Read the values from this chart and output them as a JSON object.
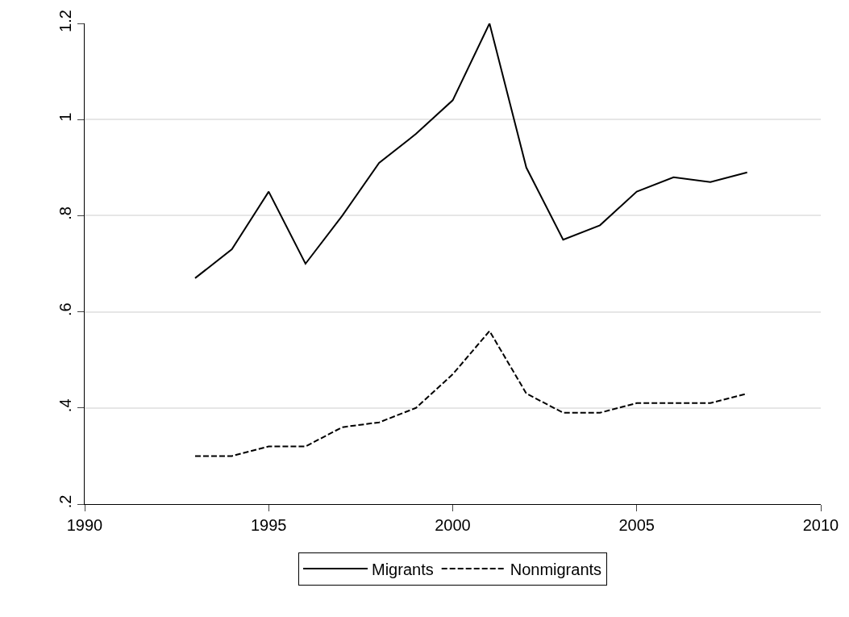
{
  "chart_data": {
    "type": "line",
    "x": [
      1993,
      1994,
      1995,
      1996,
      1997,
      1998,
      1999,
      2000,
      2001,
      2002,
      2003,
      2004,
      2005,
      2006,
      2007,
      2008
    ],
    "series": [
      {
        "name": "Migrants",
        "color": "#000000",
        "line_style": "solid",
        "values": [
          0.67,
          0.73,
          0.85,
          0.7,
          0.8,
          0.91,
          0.97,
          1.04,
          1.2,
          0.9,
          0.75,
          0.78,
          0.85,
          0.88,
          0.87,
          0.89
        ]
      },
      {
        "name": "Nonmigrants",
        "color": "#000000",
        "line_style": "dashed",
        "values": [
          0.3,
          0.3,
          0.32,
          0.32,
          0.36,
          0.37,
          0.4,
          0.47,
          0.56,
          0.43,
          0.39,
          0.39,
          0.41,
          0.41,
          0.41,
          0.43
        ]
      }
    ],
    "xlim": [
      1990,
      2010
    ],
    "xticks": [
      1990,
      1995,
      2000,
      2005,
      2010
    ],
    "ylim": [
      0.2,
      1.2
    ],
    "yticks": [
      {
        "value": 0.2,
        "label": ".2"
      },
      {
        "value": 0.4,
        "label": ".4"
      },
      {
        "value": 0.6,
        "label": ".6"
      },
      {
        "value": 0.8,
        "label": ".8"
      },
      {
        "value": 1,
        "label": "1"
      },
      {
        "value": 1.2,
        "label": "1.2"
      }
    ],
    "grid": "y",
    "legend": "bottom",
    "marker": "none"
  }
}
